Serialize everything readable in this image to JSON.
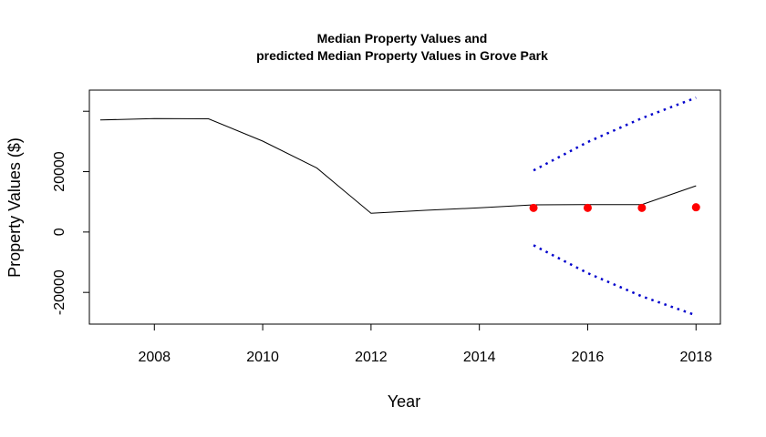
{
  "chart_data": {
    "type": "line",
    "title_line1": "Median Property Values and",
    "title_line2": "predicted Median Property Values in Grove Park",
    "xlabel": "Year",
    "ylabel": "Property Values ($)",
    "xlim": [
      2006.8,
      2018.45
    ],
    "ylim": [
      -30500,
      47000
    ],
    "x_ticks": [
      2008,
      2010,
      2012,
      2014,
      2016,
      2018
    ],
    "x_tick_labels": [
      "2008",
      "2010",
      "2012",
      "2014",
      "2016",
      "2018"
    ],
    "y_ticks": [
      -20000,
      0,
      20000
    ],
    "y_tick_labels": [
      "-20000",
      "0",
      "20000"
    ],
    "y_ticks_unlabeled": [
      40000
    ],
    "grid": false,
    "series": [
      {
        "style": "line",
        "color": "#000000",
        "x": [
          2007,
          2008,
          2009,
          2010,
          2011,
          2012,
          2013,
          2014,
          2015,
          2016,
          2017,
          2018
        ],
        "y": [
          37100,
          37600,
          37500,
          30100,
          21200,
          6200,
          7200,
          8000,
          9000,
          9100,
          9100,
          15300
        ]
      },
      {
        "style": "points",
        "color": "#ff0000",
        "x": [
          2015,
          2016,
          2017,
          2018
        ],
        "y": [
          8000,
          8000,
          8000,
          8200
        ]
      },
      {
        "style": "dotted",
        "color": "#0000cc",
        "x": [
          2015,
          2016,
          2017,
          2018
        ],
        "y": [
          20400,
          29800,
          37700,
          44500
        ]
      },
      {
        "style": "dotted",
        "color": "#0000cc",
        "x": [
          2015,
          2016,
          2017,
          2018
        ],
        "y": [
          -4400,
          -13600,
          -21300,
          -27600
        ]
      }
    ]
  }
}
